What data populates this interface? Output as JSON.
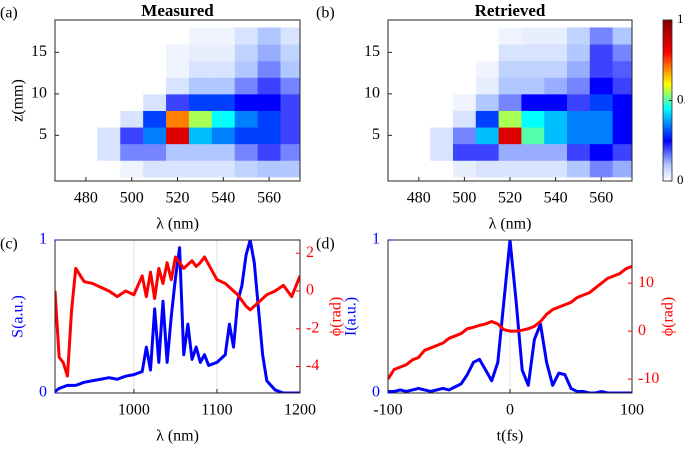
{
  "chart_data": [
    {
      "type": "heatmap",
      "panel_label": "(a)",
      "title": "Measured",
      "xlabel": "λ (nm)",
      "ylabel": "z(mm)",
      "x": [
        470,
        480,
        490,
        500,
        510,
        520,
        530,
        540,
        550,
        560,
        570
      ],
      "y": [
        1,
        3,
        5,
        7,
        9,
        11,
        13,
        15,
        17
      ],
      "z": [
        [
          0,
          0,
          0,
          0.02,
          0.05,
          0.05,
          0.05,
          0.05,
          0.08,
          0.1,
          0.1
        ],
        [
          0,
          0,
          0.05,
          0.15,
          0.15,
          0.1,
          0.1,
          0.1,
          0.15,
          0.2,
          0.15
        ],
        [
          0,
          0,
          0.05,
          0.2,
          0.35,
          0.85,
          0.4,
          0.35,
          0.3,
          0.3,
          0.2
        ],
        [
          0,
          0,
          0,
          0.05,
          0.3,
          0.7,
          0.55,
          0.45,
          0.35,
          0.3,
          0.2
        ],
        [
          0,
          0,
          0,
          0,
          0.05,
          0.2,
          0.3,
          0.3,
          0.25,
          0.25,
          0.2
        ],
        [
          0,
          0,
          0,
          0,
          0,
          0.05,
          0.1,
          0.1,
          0.15,
          0.2,
          0.15
        ],
        [
          0,
          0,
          0,
          0,
          0,
          0.02,
          0.05,
          0.05,
          0.1,
          0.15,
          0.1
        ],
        [
          0,
          0,
          0,
          0,
          0,
          0.02,
          0.03,
          0.03,
          0.08,
          0.12,
          0.08
        ],
        [
          0,
          0,
          0,
          0,
          0,
          0,
          0.02,
          0.02,
          0.05,
          0.1,
          0.05
        ]
      ],
      "xlim": [
        466.5,
        573.5
      ],
      "ylim": [
        -0.5,
        18.9
      ],
      "xticks": [
        480,
        500,
        520,
        540,
        560
      ],
      "yticks": [
        5,
        10,
        15
      ],
      "colormap": "jet-white",
      "zlim": [
        0,
        1
      ]
    },
    {
      "type": "heatmap",
      "panel_label": "(b)",
      "title": "Retrieved",
      "xlabel": "λ (nm)",
      "x": [
        470,
        480,
        490,
        500,
        510,
        520,
        530,
        540,
        550,
        560,
        570
      ],
      "y": [
        1,
        3,
        5,
        7,
        9,
        11,
        13,
        15,
        17
      ],
      "z": [
        [
          0,
          0,
          0,
          0.03,
          0.05,
          0.05,
          0.05,
          0.05,
          0.1,
          0.15,
          0.12
        ],
        [
          0,
          0,
          0.05,
          0.2,
          0.2,
          0.12,
          0.12,
          0.12,
          0.2,
          0.25,
          0.2
        ],
        [
          0,
          0,
          0.05,
          0.15,
          0.4,
          0.85,
          0.5,
          0.4,
          0.35,
          0.35,
          0.25
        ],
        [
          0,
          0,
          0,
          0.05,
          0.3,
          0.55,
          0.45,
          0.4,
          0.35,
          0.35,
          0.25
        ],
        [
          0,
          0,
          0,
          0.02,
          0.1,
          0.15,
          0.25,
          0.25,
          0.2,
          0.3,
          0.25
        ],
        [
          0,
          0,
          0,
          0,
          0.03,
          0.1,
          0.1,
          0.12,
          0.15,
          0.25,
          0.2
        ],
        [
          0,
          0,
          0,
          0,
          0.02,
          0.08,
          0.08,
          0.08,
          0.12,
          0.2,
          0.18
        ],
        [
          0,
          0,
          0,
          0,
          0,
          0.05,
          0.05,
          0.05,
          0.1,
          0.2,
          0.15
        ],
        [
          0,
          0,
          0,
          0,
          0,
          0.02,
          0.03,
          0.03,
          0.08,
          0.15,
          0.1
        ]
      ],
      "xlim": [
        466.5,
        573.5
      ],
      "ylim": [
        -0.5,
        18.9
      ],
      "xticks": [
        480,
        500,
        520,
        540,
        560
      ],
      "yticks": [
        5,
        10,
        15
      ],
      "colormap": "jet-white",
      "zlim": [
        0,
        1
      ],
      "zticks": [
        0,
        0.5,
        1
      ]
    },
    {
      "type": "line",
      "panel_label": "(c)",
      "xlabel": "λ (nm)",
      "ylabel": "S(a.u.)",
      "y2label": "ϕ(rad)",
      "x": [
        905,
        910,
        915,
        920,
        925,
        930,
        940,
        950,
        960,
        970,
        980,
        990,
        1000,
        1010,
        1015,
        1020,
        1025,
        1030,
        1035,
        1040,
        1045,
        1050,
        1055,
        1060,
        1065,
        1070,
        1075,
        1080,
        1085,
        1090,
        1100,
        1110,
        1115,
        1120,
        1125,
        1130,
        1135,
        1140,
        1145,
        1150,
        1155,
        1160,
        1170,
        1180,
        1190,
        1200
      ],
      "series": [
        {
          "color": "#0000ff",
          "values": [
            0.01,
            0.03,
            0.04,
            0.05,
            0.05,
            0.05,
            0.07,
            0.08,
            0.09,
            0.1,
            0.09,
            0.11,
            0.12,
            0.14,
            0.3,
            0.15,
            0.55,
            0.2,
            0.6,
            0.2,
            0.5,
            0.75,
            0.95,
            0.25,
            0.45,
            0.22,
            0.3,
            0.2,
            0.25,
            0.18,
            0.2,
            0.25,
            0.45,
            0.3,
            0.6,
            0.7,
            0.9,
            1.0,
            0.85,
            0.55,
            0.25,
            0.08,
            0.02,
            0,
            0,
            0
          ]
        },
        {
          "color": "#ff0000",
          "axis": "y2",
          "values": [
            0,
            -3.5,
            -3.8,
            -4.5,
            -1,
            1.2,
            0.5,
            0.4,
            0.2,
            0,
            -0.3,
            0,
            -0.2,
            0.8,
            -0.3,
            1,
            -0.4,
            1.2,
            0.4,
            1.5,
            0.6,
            1.8,
            1.5,
            1.2,
            1.4,
            1.6,
            1.3,
            1.5,
            1.8,
            1.4,
            0.6,
            0.4,
            0.2,
            0,
            -0.2,
            -0.5,
            -0.8,
            -1,
            -0.8,
            -0.6,
            -0.4,
            -0.2,
            0,
            0.3,
            -0.3,
            0.8
          ]
        }
      ],
      "xlim": [
        905,
        1200
      ],
      "xticks": [
        1000,
        1100,
        1200
      ],
      "ylim": [
        0,
        1
      ],
      "yticks": [
        0,
        1
      ],
      "y2lim": [
        -5.4,
        2.7
      ],
      "y2ticks": [
        -4,
        -2,
        0,
        2
      ],
      "grid": true
    },
    {
      "type": "line",
      "panel_label": "(d)",
      "xlabel": "t(fs)",
      "ylabel": "I(a.u.)",
      "y2label": "ϕ(rad)",
      "x": [
        -100,
        -95,
        -90,
        -85,
        -80,
        -75,
        -70,
        -65,
        -60,
        -55,
        -50,
        -45,
        -40,
        -35,
        -30,
        -25,
        -20,
        -15,
        -10,
        -5,
        0,
        5,
        10,
        15,
        20,
        25,
        30,
        35,
        40,
        45,
        50,
        55,
        60,
        65,
        70,
        75,
        80,
        85,
        90,
        95,
        100
      ],
      "series": [
        {
          "color": "#0000ff",
          "values": [
            0.01,
            0.01,
            0.02,
            0.01,
            0.02,
            0.03,
            0.02,
            0.01,
            0.02,
            0.03,
            0.02,
            0.04,
            0.06,
            0.12,
            0.2,
            0.22,
            0.15,
            0.08,
            0.2,
            0.6,
            1.0,
            0.6,
            0.15,
            0.05,
            0.35,
            0.45,
            0.2,
            0.05,
            0.13,
            0.12,
            0.03,
            0.01,
            0.01,
            0,
            0,
            0.01,
            0,
            0,
            0,
            0,
            0
          ]
        },
        {
          "color": "#ff0000",
          "axis": "y2",
          "values": [
            -10,
            -8,
            -7.5,
            -7,
            -6,
            -5.5,
            -4,
            -3.5,
            -3,
            -2.5,
            -1.5,
            -1,
            -0.5,
            0.5,
            0.8,
            1.2,
            1.5,
            2,
            1.5,
            0.3,
            0,
            0,
            0.2,
            0.5,
            1,
            2,
            3.5,
            4.5,
            5,
            5.5,
            6,
            7,
            7.5,
            8,
            9,
            10,
            11,
            11.5,
            12,
            13,
            13.5
          ]
        }
      ],
      "xlim": [
        -100,
        100
      ],
      "xticks": [
        -100,
        0,
        100
      ],
      "ylim": [
        0,
        1
      ],
      "yticks": [
        0,
        1
      ],
      "y2lim": [
        -12.9,
        19
      ],
      "y2ticks": [
        -10,
        0,
        10
      ],
      "grid": true
    }
  ]
}
